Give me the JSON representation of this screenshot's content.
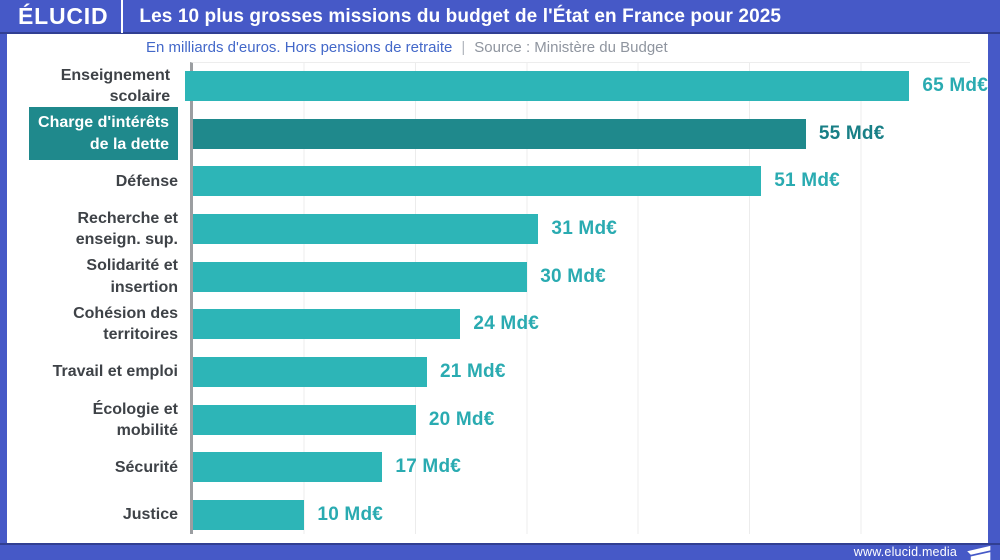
{
  "header": {
    "logo": "ÉLUCID",
    "title": "Les 10 plus grosses missions du budget de l'État en France pour 2025"
  },
  "subtitle": {
    "note": "En milliards d'euros. Hors pensions de retraite",
    "separator": "|",
    "source": "Source : Ministère du Budget"
  },
  "footer": {
    "url": "www.elucid.media"
  },
  "colors": {
    "brand_blue": "#4659c7",
    "teal": "#2db5b7",
    "dark_teal": "#1f898c",
    "value_text": "#2aabb1",
    "value_text_highlight": "#187f86",
    "label_text": "#3e4247",
    "subtitle_blue": "#4368c9",
    "subtitle_gray": "#8f959f",
    "axis": "#9b9ea1",
    "gridline": "#ececec"
  },
  "chart_data": {
    "type": "bar",
    "orientation": "horizontal",
    "title": "Les 10 plus grosses missions du budget de l'État en France pour 2025",
    "subtitle": "En milliards d'euros. Hors pensions de retraite",
    "source": "Source : Ministère du Budget",
    "unit": "Md€",
    "categories": [
      "Enseignement\nscolaire",
      "Charge d'intérêts\nde la dette",
      "Défense",
      "Recherche et\nenseign. sup.",
      "Solidarité et\ninsertion",
      "Cohésion des\nterritoires",
      "Travail et emploi",
      "Écologie et\nmobilité",
      "Sécurité",
      "Justice"
    ],
    "values": [
      65,
      55,
      51,
      31,
      30,
      24,
      21,
      20,
      17,
      10
    ],
    "value_labels": [
      "65 Md€",
      "55 Md€",
      "51 Md€",
      "31 Md€",
      "30 Md€",
      "24 Md€",
      "21 Md€",
      "20 Md€",
      "17 Md€",
      "10 Md€"
    ],
    "highlighted_index": 1,
    "xlim": [
      0,
      70
    ],
    "gridline_step": 10,
    "grid": true,
    "legend": false
  }
}
